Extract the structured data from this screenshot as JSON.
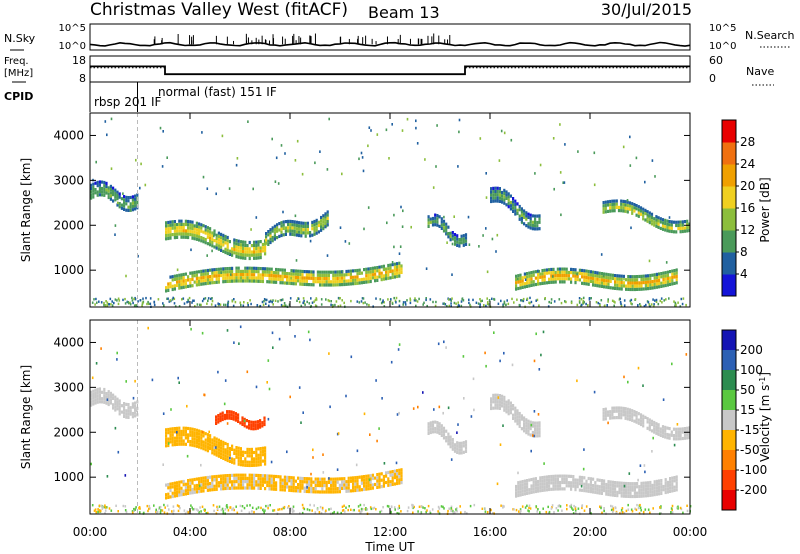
{
  "header": {
    "title": "Christmas Valley West (fitACF)",
    "beam": "Beam 13",
    "date": "30/Jul/2015"
  },
  "strips": {
    "nsky_label": "N.Sky",
    "nsearch_label": "N.Search",
    "nsky_ticks": [
      "10^5",
      "10^0"
    ],
    "nsky_right_ticks": [
      "10^5",
      "10^0"
    ],
    "freq_label_line1": "Freq.",
    "freq_label_line2": "[MHz]",
    "freq_ticks": [
      "18",
      "8"
    ],
    "nave_label": "Nave",
    "nave_ticks": [
      "60",
      "0"
    ],
    "cpid_label": "CPID",
    "cpid_modes": [
      "rbsp 201 IF",
      "normal (fast) 151 IF"
    ]
  },
  "axes": {
    "ylabel": "Slant Range [km]",
    "xlabel": "Time UT",
    "x_ticks": [
      "00:00",
      "04:00",
      "08:00",
      "12:00",
      "16:00",
      "20:00",
      "00:00"
    ],
    "y_ticks": [
      "1000",
      "2000",
      "3000",
      "4000"
    ]
  },
  "colorbars": {
    "power": {
      "label": "Power [dB]",
      "ticks": [
        "4",
        "8",
        "12",
        "16",
        "20",
        "24",
        "28"
      ],
      "colors": [
        "#1414d8",
        "#2060a0",
        "#4a9a5a",
        "#8cbe3c",
        "#f0d020",
        "#f0a000",
        "#f07010",
        "#e80000"
      ]
    },
    "velocity": {
      "label": "Velocity [m s",
      "label_sup": "-1",
      "label_end": "]",
      "ticks": [
        "200",
        "100",
        "50",
        "15",
        "-15",
        "-50",
        "-100",
        "-200"
      ],
      "colors": [
        "#1414b4",
        "#2c60b4",
        "#2c8c50",
        "#5ac840",
        "#c8c8c8",
        "#ffb400",
        "#ff8000",
        "#ff4000",
        "#e80000"
      ]
    }
  },
  "chart_data": {
    "type": "heatmap",
    "xlim": [
      0,
      24
    ],
    "ylim": [
      180,
      4500
    ],
    "cpid_switch_hour": 1.9,
    "freq_mhz": [
      {
        "start": 0,
        "end": 3.0,
        "value": 14
      },
      {
        "start": 3.0,
        "end": 15.0,
        "value": 11
      },
      {
        "start": 15.0,
        "end": 24,
        "value": 14
      }
    ],
    "power_echo_bands": [
      {
        "start": 0.0,
        "end": 1.9,
        "r0": 2750,
        "r1": 2550,
        "width": 350,
        "level": 12
      },
      {
        "start": 3.0,
        "end": 7.0,
        "r0": 1900,
        "r1": 1500,
        "width": 380,
        "level": 20
      },
      {
        "start": 7.0,
        "end": 9.5,
        "r0": 1700,
        "r1": 2200,
        "width": 300,
        "level": 16
      },
      {
        "start": 3.0,
        "end": 12.5,
        "r0": 700,
        "r1": 1050,
        "width": 320,
        "level": 22
      },
      {
        "start": 13.5,
        "end": 15.0,
        "r0": 2100,
        "r1": 1700,
        "width": 250,
        "level": 12
      },
      {
        "start": 16.0,
        "end": 18.0,
        "r0": 2700,
        "r1": 2100,
        "width": 300,
        "level": 12
      },
      {
        "start": 17.0,
        "end": 23.5,
        "r0": 750,
        "r1": 900,
        "width": 300,
        "level": 22
      },
      {
        "start": 20.5,
        "end": 24.0,
        "r0": 2400,
        "r1": 2000,
        "width": 280,
        "level": 16
      }
    ],
    "velocity_echo_bands": [
      {
        "start": 0.0,
        "end": 1.9,
        "r0": 2750,
        "r1": 2550,
        "width": 350,
        "velocity": 0
      },
      {
        "start": 3.0,
        "end": 7.0,
        "r0": 1900,
        "r1": 1500,
        "width": 380,
        "velocity": -30
      },
      {
        "start": 3.0,
        "end": 12.5,
        "r0": 700,
        "r1": 1050,
        "width": 320,
        "velocity": -20
      },
      {
        "start": 5.0,
        "end": 7.0,
        "r0": 2300,
        "r1": 2300,
        "width": 150,
        "velocity": -150
      },
      {
        "start": 13.5,
        "end": 15.0,
        "r0": 2100,
        "r1": 1700,
        "width": 250,
        "velocity": 0
      },
      {
        "start": 16.0,
        "end": 18.0,
        "r0": 2700,
        "r1": 2100,
        "width": 300,
        "velocity": 0
      },
      {
        "start": 17.0,
        "end": 23.5,
        "r0": 750,
        "r1": 900,
        "width": 300,
        "velocity": 0
      },
      {
        "start": 20.5,
        "end": 24.0,
        "r0": 2400,
        "r1": 2000,
        "width": 280,
        "velocity": 0
      }
    ]
  }
}
